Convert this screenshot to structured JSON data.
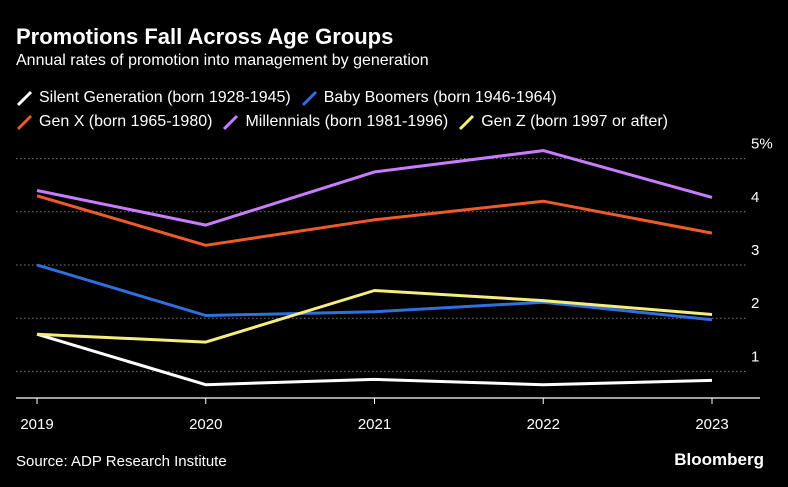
{
  "header": {
    "title": "Promotions Fall Across Age Groups",
    "subtitle": "Annual rates of promotion into management by generation"
  },
  "footer": {
    "source": "Source: ADP Research Institute",
    "brand": "Bloomberg"
  },
  "chart_data": {
    "type": "line",
    "title": "Promotions Fall Across Age Groups",
    "subtitle": "Annual rates of promotion into management by generation",
    "xlabel": "",
    "ylabel": "",
    "x": [
      "2019",
      "2020",
      "2021",
      "2022",
      "2023"
    ],
    "ylim": [
      0.5,
      5.5
    ],
    "yticks": [
      {
        "value": 1,
        "label": "1"
      },
      {
        "value": 2,
        "label": "2"
      },
      {
        "value": 3,
        "label": "3"
      },
      {
        "value": 4,
        "label": "4"
      },
      {
        "value": 5,
        "label": "5%"
      }
    ],
    "grid": true,
    "legend_position": "top-left",
    "series": [
      {
        "name": "Silent Generation (born 1928-1945)",
        "color": "#ffffff",
        "values": [
          1.7,
          0.75,
          0.85,
          0.75,
          0.83
        ]
      },
      {
        "name": "Baby Boomers (born 1946-1964)",
        "color": "#2f6fe0",
        "values": [
          3.0,
          2.05,
          2.12,
          2.3,
          1.97
        ]
      },
      {
        "name": "Gen X (born 1965-1980)",
        "color": "#ee5a2b",
        "values": [
          4.3,
          3.37,
          3.85,
          4.2,
          3.6
        ]
      },
      {
        "name": "Millennials (born 1981-1996)",
        "color": "#c77dff",
        "values": [
          4.4,
          3.75,
          4.75,
          5.15,
          4.27
        ]
      },
      {
        "name": "Gen Z (born 1997 or after)",
        "color": "#f5ed7d",
        "values": [
          1.7,
          1.55,
          2.52,
          2.33,
          2.07
        ]
      }
    ]
  }
}
